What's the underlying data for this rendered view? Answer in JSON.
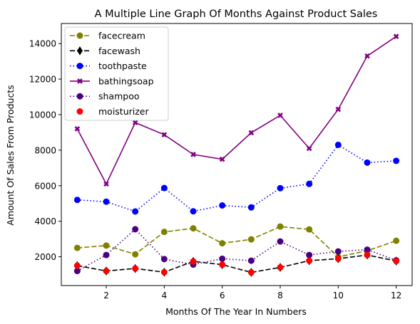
{
  "chart_data": {
    "type": "line",
    "title": "A Multiple Line Graph Of Months Against Product Sales",
    "xlabel": "Months Of The Year In Numbers",
    "ylabel": "Amount Of Sales From Products",
    "x": [
      1,
      2,
      3,
      4,
      5,
      6,
      7,
      8,
      9,
      10,
      11,
      12
    ],
    "xlim": [
      0.45,
      12.55
    ],
    "ylim": [
      380,
      15130
    ],
    "xticks": [
      2,
      4,
      6,
      8,
      10,
      12
    ],
    "yticks": [
      2000,
      4000,
      6000,
      8000,
      10000,
      12000,
      14000
    ],
    "grid": false,
    "legend_position": "top-left",
    "series": [
      {
        "name": "facecream",
        "color": "#808000",
        "line": "dashed",
        "marker": "circle",
        "values": [
          2500,
          2630,
          2140,
          3400,
          3600,
          2760,
          2980,
          3700,
          3540,
          1990,
          2340,
          2900
        ]
      },
      {
        "name": "facewash",
        "color": "#000000",
        "line": "dashed",
        "marker": "diamond",
        "values": [
          1500,
          1200,
          1340,
          1130,
          1740,
          1555,
          1120,
          1400,
          1780,
          1890,
          2100,
          1760
        ]
      },
      {
        "name": "toothpaste",
        "color": "#0000ff",
        "line": "dotted",
        "marker": "circle",
        "values": [
          5200,
          5100,
          4550,
          5870,
          4560,
          4890,
          4780,
          5860,
          6100,
          8300,
          7300,
          7400
        ]
      },
      {
        "name": "bathingsoap",
        "color": "#800080",
        "line": "solid",
        "marker": "x",
        "values": [
          9200,
          6100,
          9550,
          8870,
          7760,
          7490,
          8980,
          9960,
          8100,
          10300,
          13300,
          14400
        ]
      },
      {
        "name": "shampoo",
        "color": "#4b0082",
        "line": "dotted",
        "marker": "circle",
        "values": [
          1200,
          2100,
          3550,
          1870,
          1560,
          1890,
          1780,
          2860,
          2100,
          2300,
          2400,
          1800
        ]
      },
      {
        "name": "moisturizer",
        "color": "#ff0000",
        "line": "none",
        "marker": "circle",
        "values": [
          1500,
          1200,
          1340,
          1130,
          1740,
          1555,
          1120,
          1400,
          1780,
          1890,
          2100,
          1760
        ]
      }
    ]
  }
}
